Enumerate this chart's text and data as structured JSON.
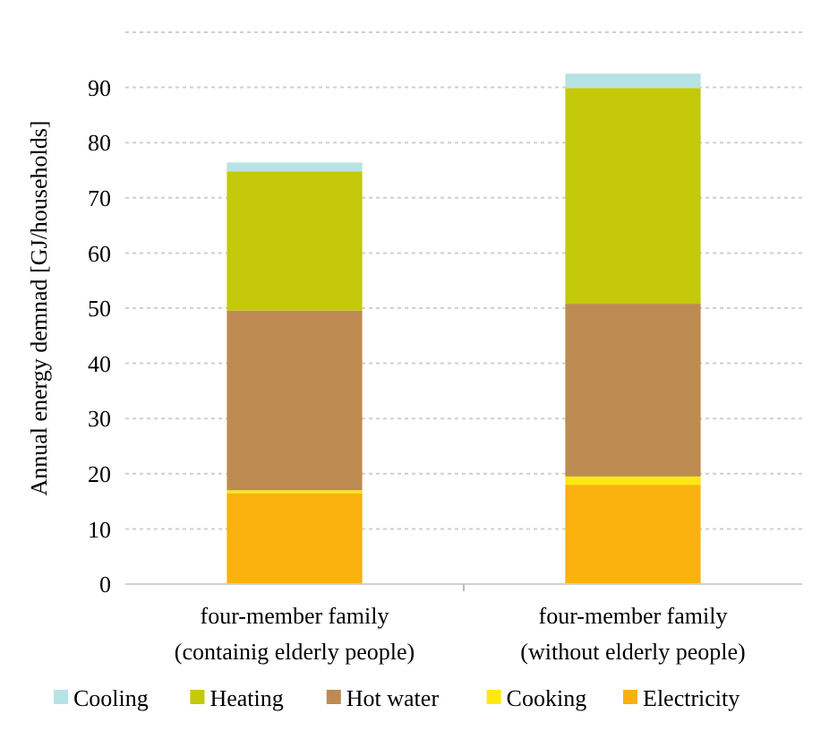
{
  "chart_data": {
    "type": "bar",
    "stacked": true,
    "ylabel": "Annual energy demnad [GJ/households]",
    "categories": [
      "four-member family\n(containig elderly people)",
      "four-member family\n(without elderly people)"
    ],
    "series": [
      {
        "name": "Electricity",
        "color": "#fbb10d",
        "values": [
          16.5,
          18.0
        ]
      },
      {
        "name": "Cooking",
        "color": "#fde910",
        "values": [
          0.5,
          1.5
        ]
      },
      {
        "name": "Hot water",
        "color": "#bd8b52",
        "values": [
          32.6,
          31.3
        ]
      },
      {
        "name": "Heating",
        "color": "#c4c90a",
        "values": [
          25.2,
          39.1
        ]
      },
      {
        "name": "Cooling",
        "color": "#b7e3e4",
        "values": [
          1.6,
          2.6
        ]
      }
    ],
    "ylim": [
      0,
      100
    ],
    "yticks": [
      0,
      10,
      20,
      30,
      40,
      50,
      60,
      70,
      80,
      90,
      {
        "value": 100,
        "label": null
      }
    ],
    "grid": "y",
    "legend": "bottom"
  }
}
